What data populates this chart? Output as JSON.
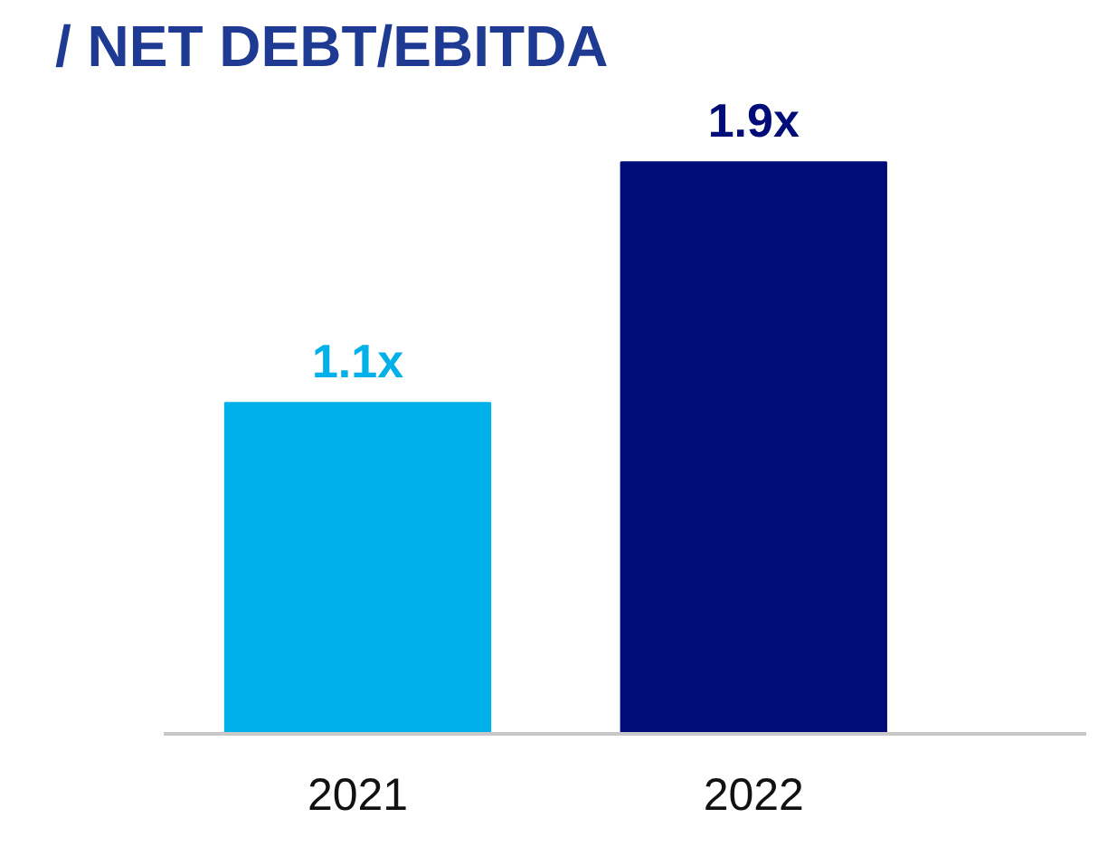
{
  "chart_data": {
    "type": "bar",
    "title": "/ NET DEBT/EBITDA",
    "categories": [
      "2021",
      "2022"
    ],
    "values": [
      1.1,
      1.9
    ],
    "colors": [
      "#00b0e8",
      "#000c78"
    ],
    "value_labels": [
      "1.1x",
      "1.9x"
    ],
    "grid": false
  }
}
